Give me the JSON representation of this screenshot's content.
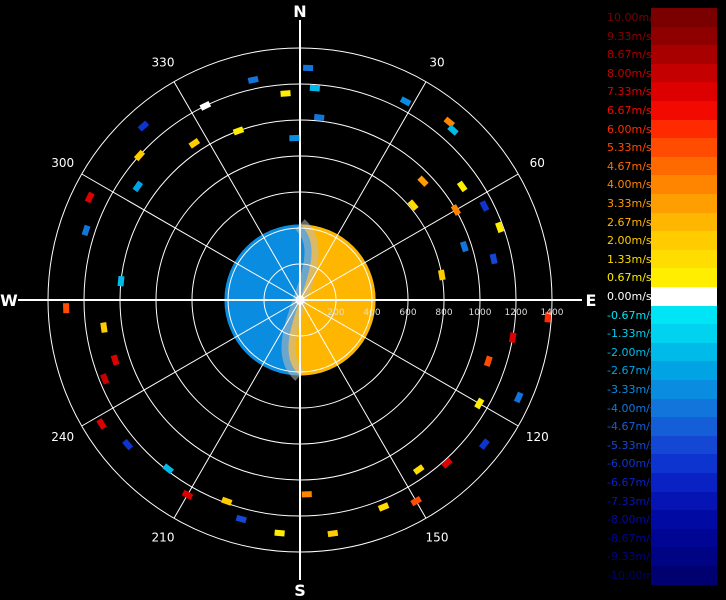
{
  "chart_data": {
    "type": "heatmap",
    "projection": "polar (radial velocity, PPI)",
    "compass_labels": [
      "N",
      "E",
      "S",
      "W"
    ],
    "bearing_labels": [
      "30",
      "60",
      "120",
      "150",
      "210",
      "240",
      "300",
      "330"
    ],
    "range_labels": [
      "200",
      "400",
      "600",
      "800",
      "1000",
      "1200",
      "1400"
    ],
    "range_max": 1400,
    "legend": {
      "unit": "m/s",
      "entries": [
        {
          "label": "10.00m/s",
          "value": 10.0,
          "color": "#7a0000"
        },
        {
          "label": "9.33m/s",
          "value": 9.33,
          "color": "#8e0000"
        },
        {
          "label": "8.67m/s",
          "value": 8.67,
          "color": "#a80000"
        },
        {
          "label": "8.00m/s",
          "value": 8.0,
          "color": "#c40000"
        },
        {
          "label": "7.33m/s",
          "value": 7.33,
          "color": "#dd0000"
        },
        {
          "label": "6.67m/s",
          "value": 6.67,
          "color": "#f20a00"
        },
        {
          "label": "6.00m/s",
          "value": 6.0,
          "color": "#ff2a00"
        },
        {
          "label": "5.33m/s",
          "value": 5.33,
          "color": "#ff4c00"
        },
        {
          "label": "4.67m/s",
          "value": 4.67,
          "color": "#ff6a00"
        },
        {
          "label": "4.00m/s",
          "value": 4.0,
          "color": "#ff8400"
        },
        {
          "label": "3.33m/s",
          "value": 3.33,
          "color": "#ff9e00"
        },
        {
          "label": "2.67m/s",
          "value": 2.67,
          "color": "#ffb600"
        },
        {
          "label": "2.00m/s",
          "value": 2.0,
          "color": "#ffcc00"
        },
        {
          "label": "1.33m/s",
          "value": 1.33,
          "color": "#ffdd00"
        },
        {
          "label": "0.67m/s",
          "value": 0.67,
          "color": "#ffee00"
        },
        {
          "label": "0.00m/s",
          "value": 0.0,
          "color": "#ffffff"
        },
        {
          "label": "-0.67m/s",
          "value": -0.67,
          "color": "#00e5f5"
        },
        {
          "label": "-1.33m/s",
          "value": -1.33,
          "color": "#00d2ef"
        },
        {
          "label": "-2.00m/s",
          "value": -2.0,
          "color": "#00bbea"
        },
        {
          "label": "-2.67m/s",
          "value": -2.67,
          "color": "#00a4e4"
        },
        {
          "label": "-3.33m/s",
          "value": -3.33,
          "color": "#0a8ce0"
        },
        {
          "label": "-4.00m/s",
          "value": -4.0,
          "color": "#1275dc"
        },
        {
          "label": "-4.67m/s",
          "value": -4.67,
          "color": "#145ed8"
        },
        {
          "label": "-5.33m/s",
          "value": -5.33,
          "color": "#1448d4"
        },
        {
          "label": "-6.00m/s",
          "value": -6.0,
          "color": "#0e34d0"
        },
        {
          "label": "-6.67m/s",
          "value": -6.67,
          "color": "#0a22c4"
        },
        {
          "label": "-7.33m/s",
          "value": -7.33,
          "color": "#0614b4"
        },
        {
          "label": "-8.00m/s",
          "value": -8.0,
          "color": "#020aa4"
        },
        {
          "label": "-8.67m/s",
          "value": -8.67,
          "color": "#000594"
        },
        {
          "label": "-9.33m/s",
          "value": -9.33,
          "color": "#000384"
        },
        {
          "label": "-10.00m/s",
          "value": -10.0,
          "color": "#000070"
        }
      ]
    },
    "velocity_field_near": {
      "range_extent": 420,
      "west_half_value": -3.33,
      "east_half_value": 2.67,
      "zero_line_shape": "S-curve through center"
    },
    "gates": [
      {
        "bearing": 2,
        "range": 1290,
        "value": -4.0
      },
      {
        "bearing": 4,
        "range": 1180,
        "value": -2.0
      },
      {
        "bearing": 6,
        "range": 1020,
        "value": -4.0
      },
      {
        "bearing": 28,
        "range": 1250,
        "value": -3.3
      },
      {
        "bearing": 40,
        "range": 1290,
        "value": 4.0
      },
      {
        "bearing": 42,
        "range": 1270,
        "value": -2.0
      },
      {
        "bearing": 46,
        "range": 950,
        "value": 3.3
      },
      {
        "bearing": 50,
        "range": 820,
        "value": 1.33
      },
      {
        "bearing": 55,
        "range": 1100,
        "value": 0.67
      },
      {
        "bearing": 60,
        "range": 1000,
        "value": 4.0
      },
      {
        "bearing": 63,
        "range": 1150,
        "value": -6.0
      },
      {
        "bearing": 70,
        "range": 1180,
        "value": 0.67
      },
      {
        "bearing": 72,
        "range": 960,
        "value": -4.0
      },
      {
        "bearing": 78,
        "range": 1100,
        "value": -5.3
      },
      {
        "bearing": 80,
        "range": 800,
        "value": 2.0
      },
      {
        "bearing": 94,
        "range": 1380,
        "value": 6.0
      },
      {
        "bearing": 100,
        "range": 1200,
        "value": 7.3
      },
      {
        "bearing": 108,
        "range": 1100,
        "value": 5.3
      },
      {
        "bearing": 114,
        "range": 1330,
        "value": -4.0
      },
      {
        "bearing": 120,
        "range": 1150,
        "value": 0.67
      },
      {
        "bearing": 128,
        "range": 1300,
        "value": -6.0
      },
      {
        "bearing": 138,
        "range": 1220,
        "value": 7.3
      },
      {
        "bearing": 145,
        "range": 1150,
        "value": 1.33
      },
      {
        "bearing": 150,
        "range": 1290,
        "value": 5.3
      },
      {
        "bearing": 158,
        "range": 1240,
        "value": 1.33
      },
      {
        "bearing": 172,
        "range": 1310,
        "value": 2.0
      },
      {
        "bearing": 178,
        "range": 1080,
        "value": 4.0
      },
      {
        "bearing": 185,
        "range": 1300,
        "value": 0.67
      },
      {
        "bearing": 195,
        "range": 1260,
        "value": -5.3
      },
      {
        "bearing": 200,
        "range": 1190,
        "value": 2.0
      },
      {
        "bearing": 210,
        "range": 1250,
        "value": 7.3
      },
      {
        "bearing": 218,
        "range": 1190,
        "value": -2.0
      },
      {
        "bearing": 230,
        "range": 1250,
        "value": -6.0
      },
      {
        "bearing": 238,
        "range": 1300,
        "value": 7.3
      },
      {
        "bearing": 248,
        "range": 1170,
        "value": 8.0
      },
      {
        "bearing": 252,
        "range": 1080,
        "value": 7.3
      },
      {
        "bearing": 262,
        "range": 1100,
        "value": 2.0
      },
      {
        "bearing": 268,
        "range": 1300,
        "value": 5.3
      },
      {
        "bearing": 276,
        "range": 1000,
        "value": -2.0
      },
      {
        "bearing": 288,
        "range": 1250,
        "value": -4.0
      },
      {
        "bearing": 296,
        "range": 1300,
        "value": 7.3
      },
      {
        "bearing": 305,
        "range": 1100,
        "value": -2.7
      },
      {
        "bearing": 312,
        "range": 1200,
        "value": 2.0
      },
      {
        "bearing": 318,
        "range": 1300,
        "value": -6.0
      },
      {
        "bearing": 326,
        "range": 1050,
        "value": 2.0
      },
      {
        "bearing": 334,
        "range": 1200,
        "value": 0.0
      },
      {
        "bearing": 340,
        "range": 1000,
        "value": 0.67
      },
      {
        "bearing": 348,
        "range": 1250,
        "value": -4.0
      },
      {
        "bearing": 356,
        "range": 1150,
        "value": 0.67
      },
      {
        "bearing": 358,
        "range": 900,
        "value": -3.3
      }
    ]
  }
}
